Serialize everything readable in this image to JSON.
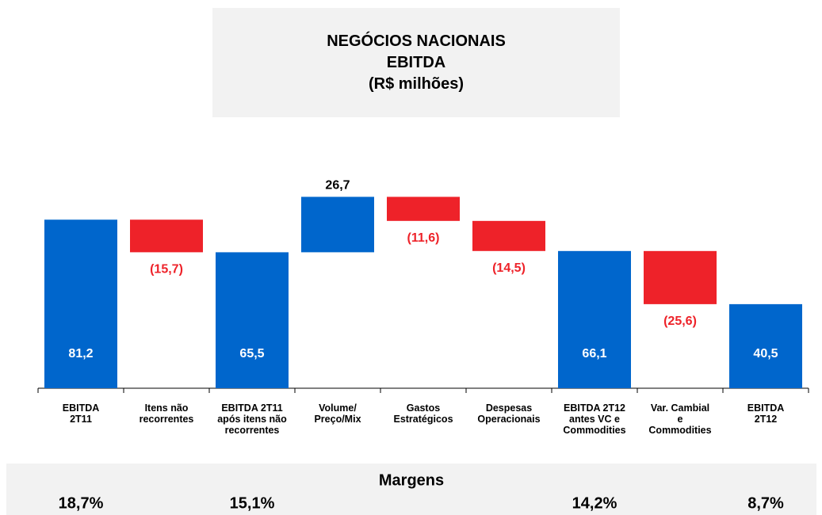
{
  "chart_data": {
    "type": "waterfall",
    "title": "NEGÓCIOS NACIONAIS\nEBITDA\n(R$ milhões)",
    "categories": [
      "EBITDA\n2T11",
      "Itens não\nrecorrentes",
      "EBITDA 2T11\napós itens não\nrecorrentes",
      "Volume/\nPreço/Mix",
      "Gastos\nEstratégicos",
      "Despesas\nOperacionais",
      "EBITDA 2T12\nantes VC e\nCommodities",
      "Var. Cambial\ne\nCommodities",
      "EBITDA\n2T12"
    ],
    "values": [
      81.2,
      -15.7,
      65.5,
      26.7,
      -11.6,
      -14.5,
      66.1,
      -25.6,
      40.5
    ],
    "value_labels": [
      "81,2",
      "(15,7)",
      "65,5",
      "26,7",
      "(11,6)",
      "(14,5)",
      "66,1",
      "(25,6)",
      "40,5"
    ],
    "totals": [
      true,
      false,
      true,
      false,
      false,
      false,
      true,
      false,
      true
    ],
    "color": "#0066cc",
    "negative_color": "#ee2229",
    "ylim": [
      0,
      100
    ],
    "margins": {
      "title": "Margens",
      "values": [
        18.7,
        null,
        15.1,
        null,
        null,
        null,
        14.2,
        null,
        8.7
      ],
      "value_labels": [
        "18,7%",
        null,
        "15,1%",
        null,
        null,
        null,
        "14,2%",
        null,
        "8,7%"
      ]
    }
  }
}
